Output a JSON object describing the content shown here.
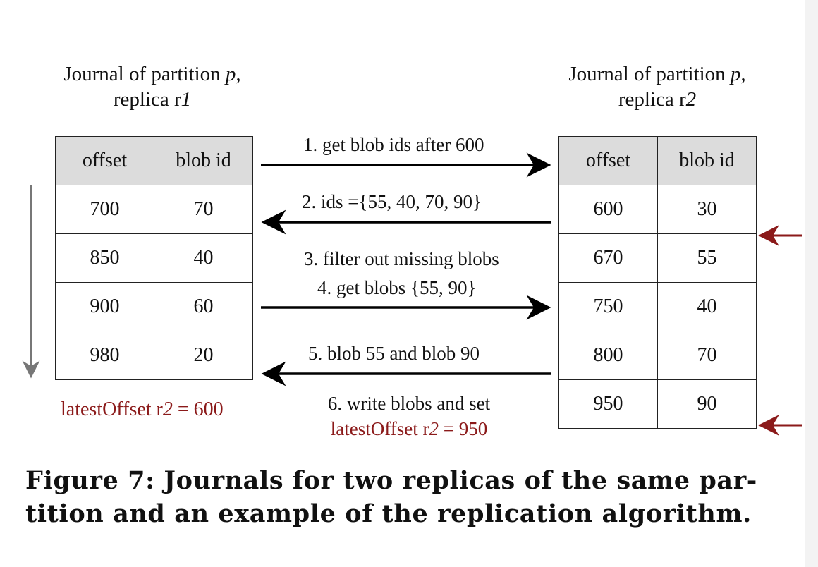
{
  "left_journal": {
    "title_line1_prefix": "Journal of partition ",
    "title_partition": "p,",
    "title_line2_prefix": "replica r",
    "title_replica_num": "1",
    "headers": [
      "offset",
      "blob id"
    ],
    "rows": [
      [
        "700",
        "70"
      ],
      [
        "850",
        "40"
      ],
      [
        "900",
        "60"
      ],
      [
        "980",
        "20"
      ]
    ],
    "latest_offset_prefix": "latestOffset r",
    "latest_offset_num": "2",
    "latest_offset_value": " = 600"
  },
  "right_journal": {
    "title_line1_prefix": "Journal of partition ",
    "title_partition": "p,",
    "title_line2_prefix": "replica r",
    "title_replica_num": "2",
    "headers": [
      "offset",
      "blob id"
    ],
    "rows": [
      [
        "600",
        "30"
      ],
      [
        "670",
        "55"
      ],
      [
        "750",
        "40"
      ],
      [
        "800",
        "70"
      ],
      [
        "950",
        "90"
      ]
    ]
  },
  "messages": {
    "m1": "1.  get blob ids after 600",
    "m2": "2. ids ={55, 40, 70, 90}",
    "m3": "3. filter out missing blobs",
    "m4": "4. get blobs {55, 90}",
    "m5": "5. blob 55 and blob 90",
    "m6_line1": "6. write blobs and set",
    "m6_line2_prefix": "latestOffset r",
    "m6_line2_num": "2",
    "m6_line2_value": " = 950"
  },
  "figure_caption": {
    "line1": "Figure 7: Journals for two replicas of the same par-",
    "line2": "tition and an example of the replication algorithm."
  },
  "colors": {
    "accent_red": "#8b1a1a",
    "header_fill": "#dcdcdc",
    "scan_arrow": "#777777"
  }
}
